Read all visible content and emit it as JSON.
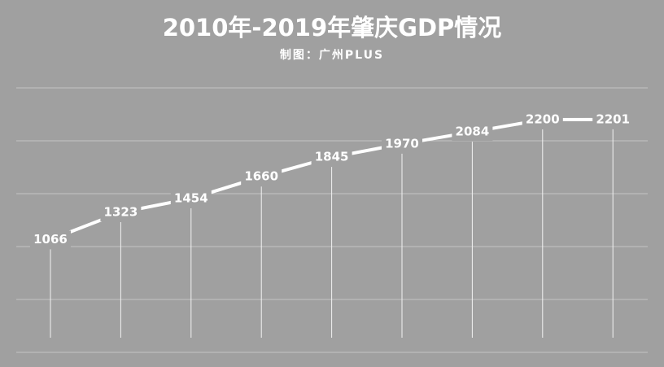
{
  "chart_data": {
    "type": "line",
    "title": "2010年-2019年肇庆GDP情况",
    "subtitle": "制图：广州PLUS",
    "values": [
      1066,
      1323,
      1454,
      1660,
      1845,
      1970,
      2084,
      2200,
      2201
    ],
    "color": "#ffffff",
    "ylim": [
      0,
      2500
    ],
    "yticks": [
      0,
      500,
      1000,
      1500,
      2000,
      2500
    ],
    "grid": true
  }
}
